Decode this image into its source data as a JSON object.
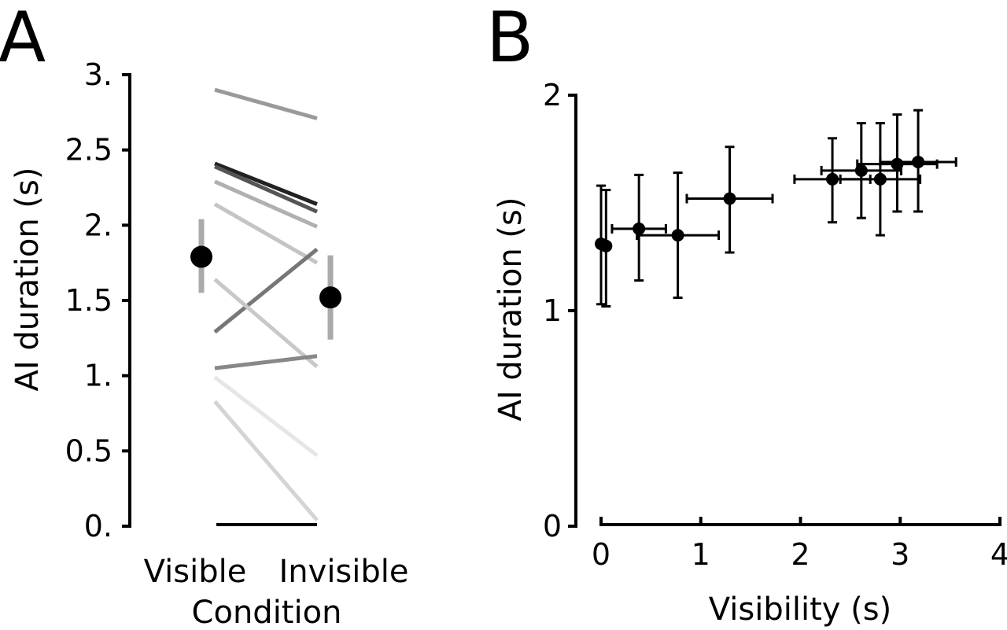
{
  "chart_data": [
    {
      "type": "line",
      "panel_label": "A",
      "xlabel": "Condition",
      "ylabel": "AI duration (s)",
      "categories": [
        "Visible",
        "Invisible"
      ],
      "yticks": [
        "0.",
        "0.5",
        "1.",
        "1.5",
        "2.",
        "2.5",
        "3."
      ],
      "ylim": [
        0,
        3
      ],
      "series": [
        {
          "values": [
            2.9,
            2.71
          ],
          "color": "#9a9a9a"
        },
        {
          "values": [
            2.41,
            2.14
          ],
          "color": "#222222"
        },
        {
          "values": [
            2.39,
            2.09
          ],
          "color": "#555555"
        },
        {
          "values": [
            2.29,
            1.99
          ],
          "color": "#b0b0b0"
        },
        {
          "values": [
            2.14,
            1.75
          ],
          "color": "#c4c4c4"
        },
        {
          "values": [
            1.29,
            1.84
          ],
          "color": "#777777"
        },
        {
          "values": [
            1.64,
            1.06
          ],
          "color": "#c8c8c8"
        },
        {
          "values": [
            1.05,
            1.13
          ],
          "color": "#888888"
        },
        {
          "values": [
            0.99,
            0.47
          ],
          "color": "#e6e6e6"
        },
        {
          "values": [
            0.83,
            0.04
          ],
          "color": "#d4d4d4"
        }
      ],
      "means": [
        {
          "category": "Visible",
          "value": 1.79,
          "err_low": 1.55,
          "err_high": 2.04
        },
        {
          "category": "Invisible",
          "value": 1.52,
          "err_low": 1.24,
          "err_high": 1.8
        }
      ],
      "grid": false,
      "legend": "none"
    },
    {
      "type": "scatter",
      "panel_label": "B",
      "xlabel": "Visibility (s)",
      "ylabel": "AI duration (s)",
      "xticks": [
        "0",
        "1",
        "2",
        "3",
        "4"
      ],
      "yticks": [
        "0",
        "1",
        "2"
      ],
      "xlim": [
        0,
        4
      ],
      "ylim": [
        0,
        2
      ],
      "points": [
        {
          "x": 0.0,
          "y": 1.31,
          "xerr": 0.0,
          "y_low": 1.03,
          "y_high": 1.58
        },
        {
          "x": 0.05,
          "y": 1.3,
          "xerr": 0.0,
          "y_low": 1.02,
          "y_high": 1.56
        },
        {
          "x": 0.38,
          "y": 1.38,
          "xerr": 0.27,
          "y_low": 1.14,
          "y_high": 1.63
        },
        {
          "x": 0.77,
          "y": 1.35,
          "xerr": 0.41,
          "y_low": 1.06,
          "y_high": 1.64
        },
        {
          "x": 1.29,
          "y": 1.52,
          "xerr": 0.43,
          "y_low": 1.27,
          "y_high": 1.76
        },
        {
          "x": 2.32,
          "y": 1.61,
          "xerr": 0.38,
          "y_low": 1.41,
          "y_high": 1.8
        },
        {
          "x": 2.61,
          "y": 1.65,
          "xerr": 0.4,
          "y_low": 1.43,
          "y_high": 1.87
        },
        {
          "x": 2.8,
          "y": 1.61,
          "xerr": 0.4,
          "y_low": 1.35,
          "y_high": 1.87
        },
        {
          "x": 2.97,
          "y": 1.68,
          "xerr": 0.4,
          "y_low": 1.46,
          "y_high": 1.91
        },
        {
          "x": 3.18,
          "y": 1.69,
          "xerr": 0.38,
          "y_low": 1.46,
          "y_high": 1.93
        }
      ],
      "grid": false,
      "legend": "none"
    }
  ]
}
